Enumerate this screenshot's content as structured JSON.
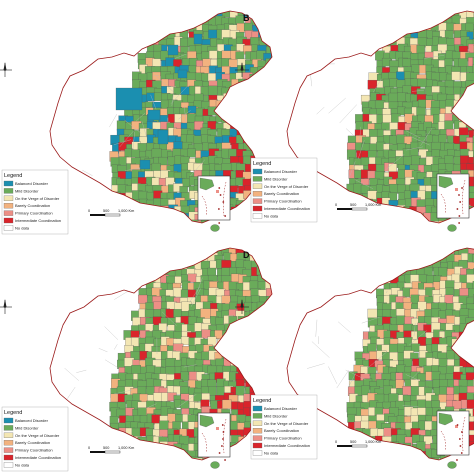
{
  "panels": [
    {
      "letter": "",
      "legend": {
        "title": "Legend",
        "items": [
          {
            "label": "Balanced Disorder",
            "color": "#1b8fb0"
          },
          {
            "label": "Mild Disorder",
            "color": "#6aab5a"
          },
          {
            "label": "On the Verge of Disorder",
            "color": "#f3e6b3"
          },
          {
            "label": "Barely Coordination",
            "color": "#f2b27f"
          },
          {
            "label": "Primary Coordination",
            "color": "#ec8f86"
          },
          {
            "label": "Intermediate Coordination",
            "color": "#d9242b"
          },
          {
            "label": "No data",
            "color": "#ffffff"
          }
        ]
      },
      "scale": {
        "labels": [
          "0",
          "500",
          "1,000 Km"
        ]
      }
    },
    {
      "letter": "B",
      "legend": {
        "title": "Legend",
        "items": [
          {
            "label": "Balanced Disorder",
            "color": "#1b8fb0"
          },
          {
            "label": "Mild Disorder",
            "color": "#6aab5a"
          },
          {
            "label": "On the Verge of Disorder",
            "color": "#f3e6b3"
          },
          {
            "label": "Barely Coordination",
            "color": "#f2b27f"
          },
          {
            "label": "Primary Coordination",
            "color": "#ec8f86"
          },
          {
            "label": "Intermediate Coordination",
            "color": "#d9242b"
          },
          {
            "label": "No data",
            "color": "#ffffff"
          }
        ]
      },
      "scale": {
        "labels": [
          "0",
          "500",
          "1,000 Km"
        ]
      }
    },
    {
      "letter": "",
      "legend": {
        "title": "Legend",
        "items": [
          {
            "label": "Balanced Disorder",
            "color": "#1b8fb0"
          },
          {
            "label": "Mild Disorder",
            "color": "#6aab5a"
          },
          {
            "label": "On the Verge of Disorder",
            "color": "#f3e6b3"
          },
          {
            "label": "Barely Coordination",
            "color": "#f2b27f"
          },
          {
            "label": "Primary Coordination",
            "color": "#ec8f86"
          },
          {
            "label": "Intermediate Coordination",
            "color": "#d9242b"
          },
          {
            "label": "No data",
            "color": "#ffffff"
          }
        ]
      },
      "scale": {
        "labels": [
          "0",
          "500",
          "1,000 Km"
        ]
      }
    },
    {
      "letter": "D",
      "legend": {
        "title": "Legend",
        "items": [
          {
            "label": "Balanced Disorder",
            "color": "#1b8fb0"
          },
          {
            "label": "Mild Disorder",
            "color": "#6aab5a"
          },
          {
            "label": "On the Verge of Disorder",
            "color": "#f3e6b3"
          },
          {
            "label": "Barely Coordination",
            "color": "#f2b27f"
          },
          {
            "label": "Primary Coordination",
            "color": "#ec8f86"
          },
          {
            "label": "Intermediate Coordination",
            "color": "#d9242b"
          },
          {
            "label": "No data",
            "color": "#ffffff"
          }
        ]
      },
      "scale": {
        "labels": [
          "0",
          "500",
          "1,000 Km"
        ]
      }
    }
  ],
  "inset_label": "South China Sea"
}
